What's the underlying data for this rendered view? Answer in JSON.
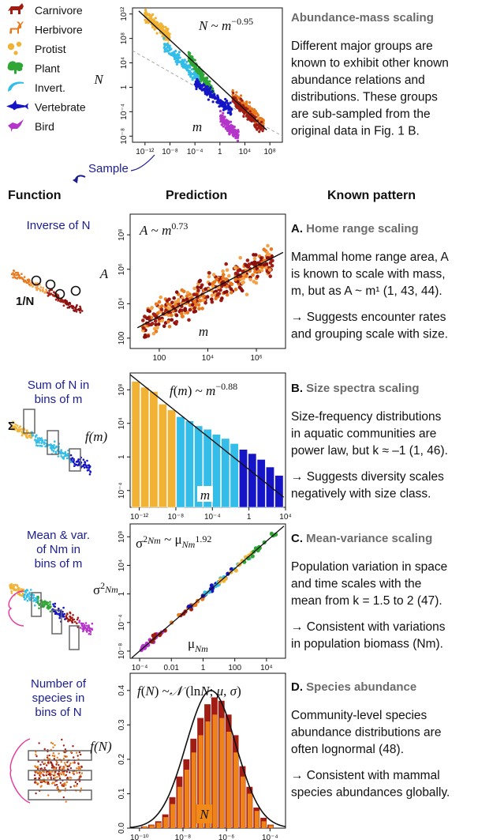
{
  "legend": [
    {
      "label": "Carnivore",
      "icon": "wolf-icon",
      "color": "#a11c12"
    },
    {
      "label": "Herbivore",
      "icon": "deer-icon",
      "color": "#e8791e"
    },
    {
      "label": "Protist",
      "icon": "dots-icon",
      "color": "#f2b233"
    },
    {
      "label": "Plant",
      "icon": "tree-icon",
      "color": "#2fa635"
    },
    {
      "label": "Invert.",
      "icon": "shrimp-icon",
      "color": "#33bde8"
    },
    {
      "label": "Vertebrate",
      "icon": "shark-icon",
      "color": "#1515c7"
    },
    {
      "label": "Bird",
      "icon": "bird-icon",
      "color": "#b534c9"
    }
  ],
  "sample_label": "Sample",
  "headers": {
    "function": "Function",
    "prediction": "Prediction",
    "known": "Known pattern"
  },
  "top": {
    "title": "Abundance-mass scaling",
    "body": [
      "Different major groups are",
      "known to exhibit other known",
      "abundance relations and",
      "distributions. These groups",
      "are sub-sampled from the",
      "original data in Fig. 1 B."
    ]
  },
  "rows": [
    {
      "function": [
        "Inverse of N"
      ],
      "side_label": "1/N",
      "letter": "A.",
      "title": "Home range scaling",
      "body": [
        "Mammal home range area, A",
        "is known to scale with mass,",
        "m, but as A ~ m¹ (1, 43, 44)."
      ],
      "arrow": [
        "→ Suggests encounter rates",
        "and grouping scale with size."
      ]
    },
    {
      "function": [
        "Sum of N in",
        "bins of m"
      ],
      "side_label": "Σ",
      "letter": "B.",
      "title": "Size spectra scaling",
      "body": [
        "Size-frequency distributions",
        "in aquatic communities are",
        "power law, but k ≈ –1 (1, 46)."
      ],
      "arrow": [
        "→ Suggests diversity scales",
        "negatively with size class."
      ]
    },
    {
      "function": [
        "Mean & var.",
        "of Nm in",
        "bins of m"
      ],
      "side_label": "",
      "letter": "C.",
      "title": "Mean-variance scaling",
      "body": [
        "Population variation in space",
        "and time scales with the",
        "mean from k = 1.5 to 2 (47)."
      ],
      "arrow": [
        "→ Consistent with variations",
        "in population biomass (Nm)."
      ]
    },
    {
      "function": [
        "Number of",
        "species in",
        "bins of N"
      ],
      "side_label": "",
      "letter": "D.",
      "title": "Species abundance",
      "body": [
        "Community-level species",
        "abundance distributions are",
        "often lognormal (48)."
      ],
      "arrow": [
        "→ Consistent with mammal",
        "species abundances globally."
      ]
    }
  ],
  "chart_data": [
    {
      "type": "scatter",
      "equation": "N ~ m^−0.95",
      "xlabel": "m",
      "ylabel": "N",
      "x_ticks": [
        "10⁻¹²",
        "10⁻⁸",
        "10⁻⁴",
        "1",
        "10⁴",
        "10⁸"
      ],
      "y_ticks": [
        "10⁻⁸",
        "10⁻⁴",
        "1",
        "10⁴",
        "10⁸",
        "10¹²"
      ],
      "xlim_log10": [
        -14,
        10
      ],
      "ylim_log10": [
        -9,
        13
      ],
      "slope": -0.95,
      "series": [
        {
          "name": "Protist",
          "x_log10": [
            -12,
            -8
          ],
          "y_log10": [
            8,
            12
          ]
        },
        {
          "name": "Invert.",
          "x_log10": [
            -9,
            -3
          ],
          "y_log10": [
            1,
            7
          ]
        },
        {
          "name": "Plant",
          "x_log10": [
            -5,
            -1
          ],
          "y_log10": [
            -1,
            5
          ]
        },
        {
          "name": "Vertebrate",
          "x_log10": [
            -4,
            2
          ],
          "y_log10": [
            -4,
            1
          ]
        },
        {
          "name": "Herbivore",
          "x_log10": [
            2,
            7
          ],
          "y_log10": [
            -6,
            -1
          ]
        },
        {
          "name": "Carnivore",
          "x_log10": [
            2,
            7
          ],
          "y_log10": [
            -7,
            -2
          ]
        },
        {
          "name": "Bird",
          "x_log10": [
            0,
            3
          ],
          "y_log10": [
            -8,
            -5
          ]
        }
      ]
    },
    {
      "type": "scatter",
      "equation": "A ~ m^0.73",
      "xlabel": "m",
      "ylabel": "A",
      "x_ticks": [
        "100",
        "10⁴",
        "10⁶"
      ],
      "y_ticks": [
        "100",
        "10⁴",
        "10⁶",
        "10⁸"
      ],
      "xlim_log10": [
        0.8,
        7.2
      ],
      "ylim_log10": [
        1.4,
        9.2
      ],
      "slope": 0.73
    },
    {
      "type": "bar",
      "equation": "f(m) ~ m^−0.88",
      "xlabel": "m",
      "ylabel": "f(m)",
      "x_ticks": [
        "10⁻¹²",
        "10⁻⁸",
        "10⁻⁴",
        "1",
        "10⁴"
      ],
      "y_ticks": [
        "10⁻⁴",
        "1",
        "10⁴",
        "10⁸"
      ],
      "xlim_log10": [
        -13,
        4
      ],
      "ylim_log10": [
        -6,
        10
      ],
      "slope": -0.88,
      "bins_log10_values": [
        9.0,
        8.3,
        7.8,
        6.3,
        5.6,
        4.8,
        4.3,
        3.7,
        3.3,
        2.7,
        2.2,
        1.6,
        0.9,
        0.4,
        -0.3,
        -1.2,
        -2.2
      ],
      "bin_groups": [
        "Protist",
        "Protist",
        "Protist",
        "Protist",
        "Protist",
        "Invert.",
        "Invert.",
        "Invert.",
        "Invert.",
        "Invert.",
        "Invert.",
        "Invert.",
        "Vertebrate",
        "Vertebrate",
        "Vertebrate",
        "Vertebrate",
        "Vertebrate"
      ]
    },
    {
      "type": "scatter",
      "equation": "σ²Nm ~ μNm^1.92",
      "xlabel": "μNm",
      "ylabel": "σ²Nm",
      "x_ticks": [
        "10⁻⁴",
        "0.01",
        "1",
        "100",
        "10⁴"
      ],
      "y_ticks": [
        "10⁻⁸",
        "10⁻⁴",
        "1",
        "10⁴",
        "10⁸"
      ],
      "xlim_log10": [
        -4.6,
        5.2
      ],
      "ylim_log10": [
        -9,
        9.8
      ],
      "slope": 1.92
    },
    {
      "type": "bar",
      "equation": "f(N) ~ 𝒩(lnN; μ, σ)",
      "xlabel": "N",
      "ylabel": "f(N)",
      "x_ticks": [
        "10⁻¹⁰",
        "10⁻⁸",
        "10⁻⁶",
        "10⁻⁴"
      ],
      "y_ticks": [
        "0.0",
        "0.1",
        "0.2",
        "0.3",
        "0.4"
      ],
      "xlim_log10": [
        -10.2,
        -3.2
      ],
      "ylim": [
        0,
        0.45
      ],
      "values_dark": [
        0.005,
        0.01,
        0.02,
        0.04,
        0.09,
        0.15,
        0.2,
        0.26,
        0.32,
        0.36,
        0.38,
        0.37,
        0.33,
        0.27,
        0.18,
        0.12,
        0.06,
        0.03,
        0.01
      ],
      "values_orange": [
        0.004,
        0.008,
        0.016,
        0.032,
        0.07,
        0.12,
        0.17,
        0.22,
        0.27,
        0.31,
        0.33,
        0.32,
        0.28,
        0.22,
        0.15,
        0.1,
        0.05,
        0.02,
        0.008
      ]
    }
  ]
}
